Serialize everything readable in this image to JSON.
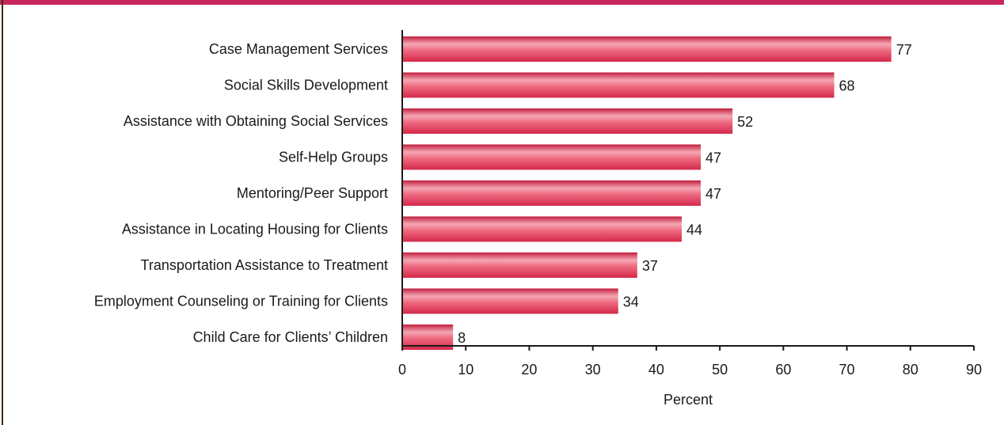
{
  "chart_data": {
    "type": "bar",
    "orientation": "horizontal",
    "categories": [
      "Case Management Services",
      "Social Skills Development",
      "Assistance with Obtaining Social Services",
      "Self-Help Groups",
      "Mentoring/Peer Support",
      "Assistance in Locating Housing for Clients",
      "Transportation Assistance to Treatment",
      "Employment Counseling or Training for Clients",
      "Child Care for Clients’ Children"
    ],
    "values": [
      77,
      68,
      52,
      47,
      47,
      44,
      37,
      34,
      8
    ],
    "xlabel": "Percent",
    "ylabel": "",
    "xlim": [
      0,
      90
    ],
    "xticks": [
      "0",
      "10",
      "20",
      "30",
      "40",
      "50",
      "60",
      "70",
      "80",
      "90"
    ],
    "grid": false,
    "bar_color": "#e8475f",
    "frame_color": "#c8265a"
  }
}
